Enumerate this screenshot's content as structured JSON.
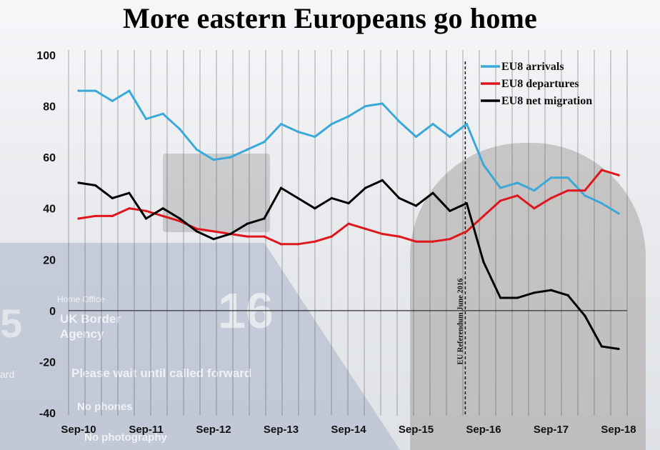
{
  "background": {
    "sign_number": "16",
    "sign_left": "5",
    "home_office": "Home Office",
    "ukba_line1": "UK Border",
    "ukba_line2": "Agency",
    "ward": "ard",
    "wait": "Please wait until called forward",
    "phones": "No phones",
    "photography": "No photography"
  },
  "chart_data": {
    "type": "line",
    "title": "More eastern Europeans go home",
    "ylim": [
      -40,
      100
    ],
    "yticks": [
      -40,
      -20,
      0,
      20,
      40,
      60,
      80,
      100
    ],
    "x_tick_labels": [
      "Sep-10",
      "Sep-11",
      "Sep-12",
      "Sep-13",
      "Sep-14",
      "Sep-15",
      "Sep-16",
      "Sep-17",
      "Sep-18"
    ],
    "x_tick_positions": [
      0,
      4,
      8,
      12,
      16,
      20,
      24,
      28,
      32
    ],
    "grid": "vertical",
    "legend_position": "top-right",
    "colors": {
      "arrivals": "#3aa9d9",
      "departures": "#e0161d",
      "net": "#000000",
      "zero_line": "#333333"
    },
    "series": [
      {
        "name": "EU8 arrivals",
        "color": "#3aa9d9",
        "values": [
          86,
          86,
          82,
          86,
          75,
          77,
          71,
          63,
          59,
          60,
          63,
          66,
          73,
          70,
          68,
          73,
          76,
          80,
          81,
          74,
          68,
          73,
          68,
          73,
          57,
          48,
          50,
          47,
          52,
          52,
          45,
          42,
          38
        ]
      },
      {
        "name": "EU8 departures",
        "color": "#e0161d",
        "values": [
          36,
          37,
          37,
          40,
          39,
          37,
          35,
          32,
          31,
          30,
          29,
          29,
          26,
          26,
          27,
          29,
          34,
          32,
          30,
          29,
          27,
          27,
          28,
          31,
          37,
          43,
          45,
          40,
          44,
          47,
          47,
          55,
          53
        ]
      },
      {
        "name": "EU8 net migration",
        "color": "#000000",
        "values": [
          50,
          49,
          44,
          46,
          36,
          40,
          36,
          31,
          28,
          30,
          34,
          36,
          48,
          44,
          40,
          44,
          42,
          48,
          51,
          44,
          41,
          46,
          39,
          42,
          19,
          5,
          5,
          7,
          8,
          6,
          -2,
          -14,
          -15
        ]
      }
    ],
    "annotation": {
      "text": "EU Referendum June 2016",
      "x": 23
    }
  }
}
